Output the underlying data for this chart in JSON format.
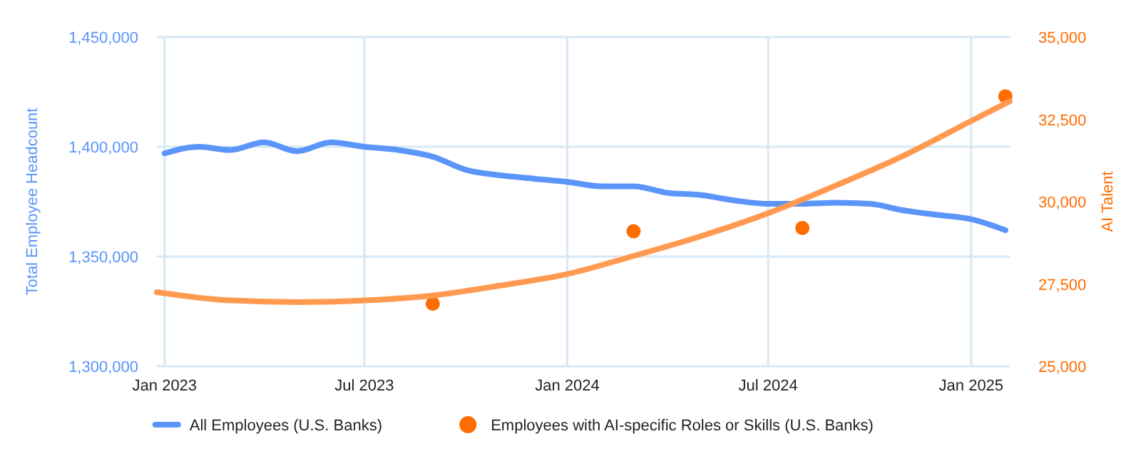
{
  "chart_data": {
    "type": "line",
    "ylabel": "Total Employee Headcount",
    "y2label": "AI Talent",
    "xlim": [
      "2022-12-25",
      "2025-02-05"
    ],
    "xticks": [
      {
        "value": "2023-01-01",
        "label": "Jan 2023"
      },
      {
        "value": "2023-07-01",
        "label": "Jul 2023"
      },
      {
        "value": "2024-01-01",
        "label": "Jan 2024"
      },
      {
        "value": "2024-07-01",
        "label": "Jul 2024"
      },
      {
        "value": "2025-01-01",
        "label": "Jan 2025"
      }
    ],
    "ylim": [
      1300000,
      1450000
    ],
    "yticks": [
      {
        "value": 1300000,
        "label": "1,300,000"
      },
      {
        "value": 1350000,
        "label": "1,350,000"
      },
      {
        "value": 1400000,
        "label": "1,400,000"
      },
      {
        "value": 1450000,
        "label": "1,450,000"
      }
    ],
    "y2lim": [
      25000,
      35000
    ],
    "y2ticks": [
      {
        "value": 25000,
        "label": "25,000"
      },
      {
        "value": 27500,
        "label": "27,500"
      },
      {
        "value": 30000,
        "label": "30,000"
      },
      {
        "value": 32500,
        "label": "32,500"
      },
      {
        "value": 35000,
        "label": "35,000"
      }
    ],
    "grid": true,
    "legend": "bottom",
    "series": [
      {
        "name": "All Employees (U.S. Banks)",
        "color": "#5b95f9",
        "x": [
          "2023-01-01",
          "2023-02-01",
          "2023-03-01",
          "2023-04-01",
          "2023-05-01",
          "2023-06-01",
          "2023-07-01",
          "2023-08-01",
          "2023-09-01",
          "2023-10-01",
          "2023-11-01",
          "2023-12-01",
          "2024-01-01",
          "2024-02-01",
          "2024-03-01",
          "2024-04-01",
          "2024-05-01",
          "2024-06-01",
          "2024-07-01",
          "2024-08-01",
          "2024-09-01",
          "2024-10-01",
          "2024-11-01",
          "2024-12-01",
          "2025-01-01",
          "2025-02-01"
        ],
        "values": [
          1397000,
          1400000,
          1398500,
          1402000,
          1398000,
          1402000,
          1400000,
          1398500,
          1395500,
          1389500,
          1387000,
          1385500,
          1384000,
          1382000,
          1382000,
          1379000,
          1378000,
          1375500,
          1374000,
          1374000,
          1374500,
          1374000,
          1371000,
          1369000,
          1367000,
          1362000
        ]
      },
      {
        "name": "Employees with AI-specific Roles or Skills (U.S. Banks)",
        "type": "scatter",
        "axis": "y2",
        "color": "#ff6d01",
        "x": [
          "2023-09-01",
          "2024-03-01",
          "2024-08-01",
          "2025-02-01"
        ],
        "values": [
          26900,
          29100,
          29200,
          33200
        ]
      },
      {
        "type": "line",
        "axis": "y2",
        "color": "#ff9a50",
        "x": [
          "2022-12-25",
          "2023-03-01",
          "2023-05-01",
          "2023-07-01",
          "2023-09-01",
          "2023-11-01",
          "2024-01-01",
          "2024-03-01",
          "2024-05-01",
          "2024-07-01",
          "2024-09-01",
          "2024-11-01",
          "2025-01-01",
          "2025-02-05"
        ],
        "values": [
          27250,
          27000,
          26950,
          27000,
          27150,
          27450,
          27800,
          28350,
          28950,
          29650,
          30500,
          31400,
          32450,
          33050
        ]
      }
    ]
  }
}
